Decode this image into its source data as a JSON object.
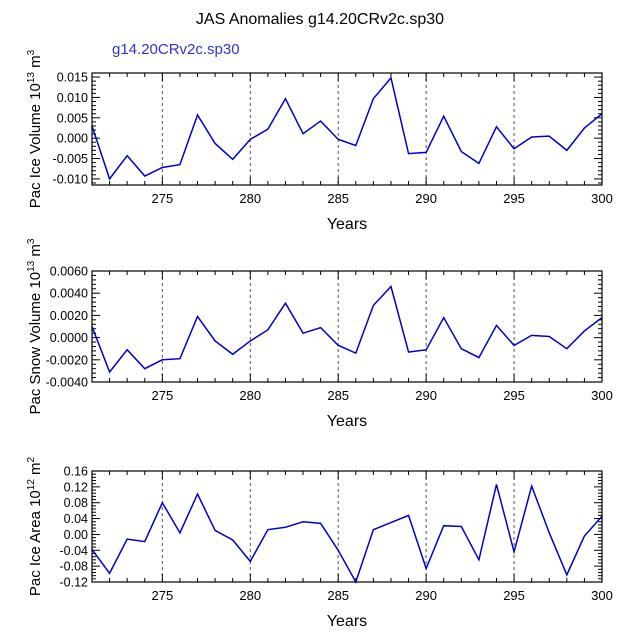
{
  "figure": {
    "title": "JAS Anomalies g14.20CRv2c.sp30",
    "case_label": "g14.20CRv2c.sp30",
    "case_label_color": "#3333cc",
    "line_color": "#0000cc"
  },
  "chart_data": [
    {
      "type": "line",
      "ylabel": "Pac Ice Volume 10",
      "ylabel_exp": "13",
      "ylabel_unit": " m",
      "ylabel_unit_exp": "3",
      "xlabel": "Years",
      "xlim": [
        271,
        300
      ],
      "ylim": [
        -0.0115,
        0.016
      ],
      "xticks": [
        275,
        280,
        285,
        290,
        295,
        300
      ],
      "xtick_labels": [
        "275",
        "280",
        "285",
        "290",
        "295",
        "300"
      ],
      "yticks": [
        -0.01,
        -0.005,
        0.0,
        0.005,
        0.01,
        0.015
      ],
      "ytick_labels": [
        "-0.010",
        "-0.005",
        "0.000",
        "0.005",
        "0.010",
        "0.015"
      ],
      "vgrid": [
        275,
        280,
        285,
        290,
        295
      ],
      "x": [
        271,
        272,
        273,
        274,
        275,
        276,
        277,
        278,
        279,
        280,
        281,
        282,
        283,
        284,
        285,
        286,
        287,
        288,
        289,
        290,
        291,
        292,
        293,
        294,
        295,
        296,
        297,
        298,
        299,
        300
      ],
      "values": [
        0.003,
        -0.01,
        -0.0043,
        -0.0093,
        -0.0072,
        -0.0065,
        0.0057,
        -0.0013,
        -0.0052,
        -0.0003,
        0.0022,
        0.0097,
        0.0011,
        0.0042,
        -0.0003,
        -0.0018,
        0.0097,
        0.0148,
        -0.0038,
        -0.0035,
        0.0054,
        -0.0033,
        -0.0062,
        0.0028,
        -0.0026,
        0.0003,
        0.0005,
        -0.003,
        0.0025,
        0.006
      ]
    },
    {
      "type": "line",
      "ylabel": "Pac Snow Volume 10",
      "ylabel_exp": "13",
      "ylabel_unit": " m",
      "ylabel_unit_exp": "3",
      "xlabel": "Years",
      "xlim": [
        271,
        300
      ],
      "ylim": [
        -0.004,
        0.006
      ],
      "xticks": [
        275,
        280,
        285,
        290,
        295,
        300
      ],
      "xtick_labels": [
        "275",
        "280",
        "285",
        "290",
        "295",
        "300"
      ],
      "yticks": [
        -0.004,
        -0.002,
        0.0,
        0.002,
        0.004,
        0.006
      ],
      "ytick_labels": [
        "-0.0040",
        "-0.0020",
        "0.0000",
        "0.0020",
        "0.0040",
        "0.0060"
      ],
      "vgrid": [
        275,
        280,
        285,
        290,
        295
      ],
      "x": [
        271,
        272,
        273,
        274,
        275,
        276,
        277,
        278,
        279,
        280,
        281,
        282,
        283,
        284,
        285,
        286,
        287,
        288,
        289,
        290,
        291,
        292,
        293,
        294,
        295,
        296,
        297,
        298,
        299,
        300
      ],
      "values": [
        0.001,
        -0.0031,
        -0.0011,
        -0.0028,
        -0.002,
        -0.0019,
        0.0019,
        -0.0003,
        -0.0015,
        -0.0003,
        0.0007,
        0.0031,
        0.0004,
        0.0009,
        -0.0007,
        -0.0014,
        0.0029,
        0.0046,
        -0.0013,
        -0.0011,
        0.0018,
        -0.001,
        -0.0018,
        0.0011,
        -0.0007,
        0.0002,
        0.0001,
        -0.001,
        0.0006,
        0.0018
      ]
    },
    {
      "type": "line",
      "ylabel": "Pac Ice Area 10",
      "ylabel_exp": "12",
      "ylabel_unit": " m",
      "ylabel_unit_exp": "2",
      "xlabel": "Years",
      "xlim": [
        271,
        300
      ],
      "ylim": [
        -0.12,
        0.16
      ],
      "xticks": [
        275,
        280,
        285,
        290,
        295,
        300
      ],
      "xtick_labels": [
        "275",
        "280",
        "285",
        "290",
        "295",
        "300"
      ],
      "yticks": [
        -0.12,
        -0.08,
        -0.04,
        0.0,
        0.04,
        0.08,
        0.12,
        0.16
      ],
      "ytick_labels": [
        "-0.12",
        "-0.08",
        "-0.04",
        "0.00",
        "0.04",
        "0.08",
        "0.12",
        "0.16"
      ],
      "vgrid": [
        275,
        280,
        285,
        290,
        295
      ],
      "x": [
        271,
        272,
        273,
        274,
        275,
        276,
        277,
        278,
        279,
        280,
        281,
        282,
        283,
        284,
        285,
        286,
        287,
        288,
        289,
        290,
        291,
        292,
        293,
        294,
        295,
        296,
        297,
        298,
        299,
        300
      ],
      "values": [
        -0.038,
        -0.098,
        -0.012,
        -0.018,
        0.08,
        0.004,
        0.102,
        0.01,
        -0.014,
        -0.068,
        0.012,
        0.018,
        0.032,
        0.028,
        -0.04,
        -0.12,
        0.012,
        0.03,
        0.048,
        -0.086,
        0.022,
        0.02,
        -0.064,
        0.126,
        -0.044,
        0.122,
        0.004,
        -0.102,
        -0.004,
        0.046
      ]
    }
  ]
}
